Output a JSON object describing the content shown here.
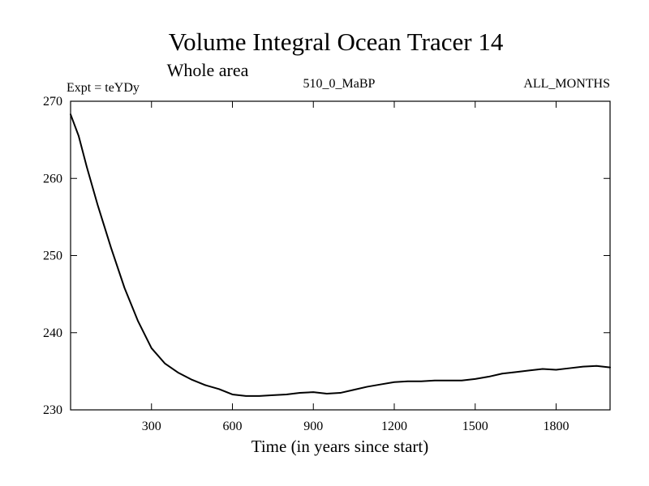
{
  "chart_data": {
    "type": "line",
    "title": "Volume Integral Ocean Tracer 14",
    "subtitle": "Whole area",
    "annotations": {
      "left": "Expt = teYDy",
      "center": "510_0_MaBP",
      "right": "ALL_MONTHS"
    },
    "xlabel": "Time (in years since start)",
    "ylabel": "",
    "xlim": [
      0,
      2000
    ],
    "ylim": [
      230,
      270
    ],
    "xticks": [
      300,
      600,
      900,
      1200,
      1500,
      1800
    ],
    "xtick_labels": [
      "300",
      "600",
      "900",
      "1200",
      "1500",
      "1800"
    ],
    "yticks": [
      230,
      240,
      250,
      260,
      270
    ],
    "ytick_labels": [
      "230",
      "240",
      "250",
      "260",
      "270"
    ],
    "grid": false,
    "series": [
      {
        "name": "Ocean Tracer 14",
        "color": "#000000",
        "x": [
          0,
          30,
          60,
          100,
          150,
          200,
          250,
          300,
          350,
          400,
          450,
          500,
          550,
          600,
          650,
          700,
          750,
          800,
          850,
          900,
          950,
          1000,
          1050,
          1100,
          1150,
          1200,
          1250,
          1300,
          1350,
          1400,
          1450,
          1500,
          1550,
          1600,
          1650,
          1700,
          1750,
          1800,
          1850,
          1900,
          1950,
          2000
        ],
        "values": [
          268.3,
          265.5,
          261.5,
          256.6,
          251.0,
          245.8,
          241.5,
          238.0,
          236.0,
          234.8,
          233.9,
          233.2,
          232.7,
          232.0,
          231.8,
          231.8,
          231.9,
          232.0,
          232.2,
          232.3,
          232.1,
          232.2,
          232.6,
          233.0,
          233.3,
          233.6,
          233.7,
          233.7,
          233.8,
          233.8,
          233.8,
          234.0,
          234.3,
          234.7,
          234.9,
          235.1,
          235.3,
          235.2,
          235.4,
          235.6,
          235.7,
          235.5
        ]
      }
    ]
  }
}
